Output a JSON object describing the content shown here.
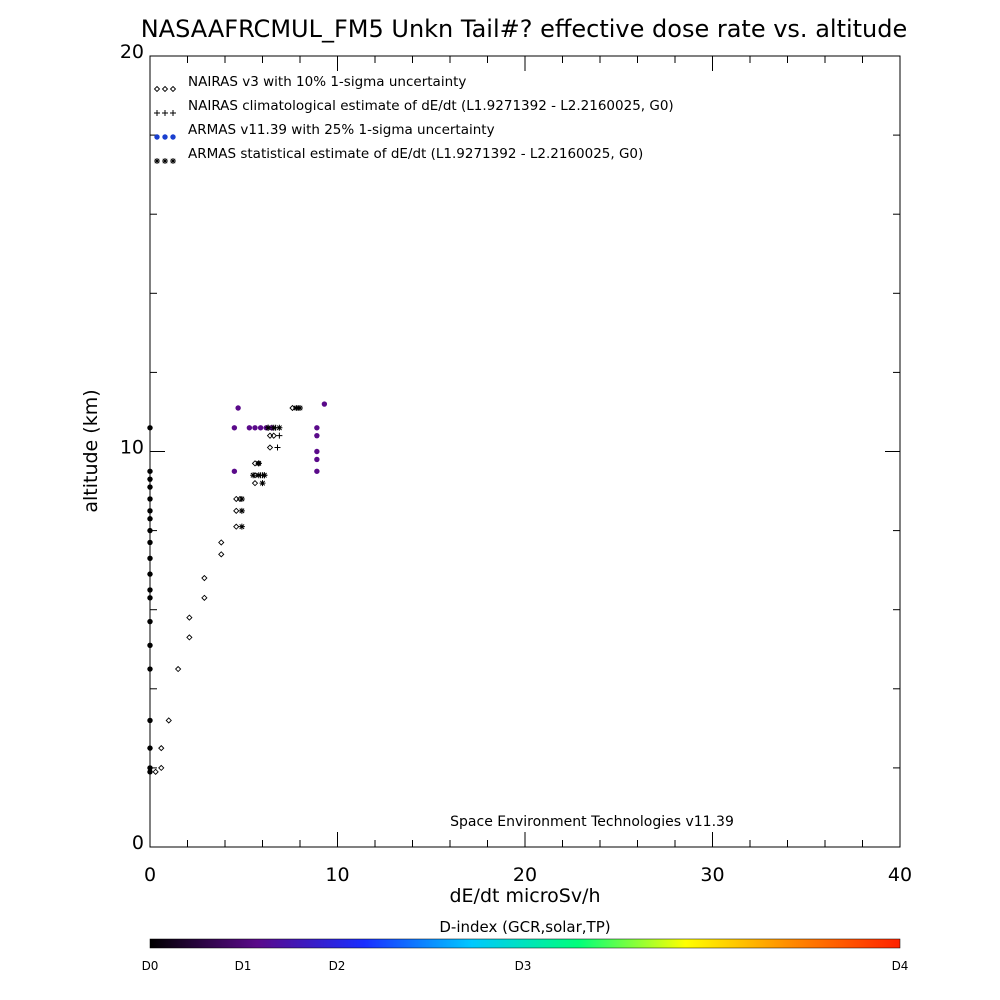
{
  "chart_data": {
    "type": "scatter",
    "title": "NASAAFRCMUL_FM5 Unkn Tail#? effective dose rate vs. altitude",
    "xlabel": "dE/dt microSv/h",
    "ylabel": "altitude (km)",
    "xlim": [
      0,
      40
    ],
    "ylim": [
      0,
      20
    ],
    "x_tick_labels": [
      "0",
      "10",
      "20",
      "30",
      "40"
    ],
    "y_tick_labels": [
      "0",
      "10",
      "20"
    ],
    "grid": false,
    "legend_placement": "top-left",
    "credit": "Space Environment Technologies v11.39",
    "series": [
      {
        "name": "NAIRAS v3 with 10% 1-sigma uncertainty",
        "marker": "diamond",
        "color": "#000000",
        "points": [
          [
            0.3,
            1.9
          ],
          [
            0.6,
            2.0
          ],
          [
            0.6,
            2.5
          ],
          [
            1.0,
            3.2
          ],
          [
            1.5,
            4.5
          ],
          [
            2.1,
            5.3
          ],
          [
            2.1,
            5.8
          ],
          [
            2.9,
            6.3
          ],
          [
            2.9,
            6.8
          ],
          [
            3.8,
            7.4
          ],
          [
            3.8,
            7.7
          ],
          [
            4.6,
            8.1
          ],
          [
            4.6,
            8.5
          ],
          [
            4.6,
            8.8
          ],
          [
            4.8,
            8.8
          ],
          [
            5.6,
            9.2
          ],
          [
            5.6,
            9.4
          ],
          [
            5.6,
            9.7
          ],
          [
            5.8,
            9.7
          ],
          [
            6.4,
            10.1
          ],
          [
            6.4,
            10.4
          ],
          [
            6.6,
            10.4
          ],
          [
            7.6,
            11.1
          ]
        ]
      },
      {
        "name": "NAIRAS climatological estimate of dE/dt (L1.9271392 - L2.2160025, G0)",
        "marker": "plus",
        "color": "#000000",
        "points": [
          [
            6.8,
            10.1
          ],
          [
            6.9,
            10.4
          ],
          [
            5.9,
            9.4
          ],
          [
            6.0,
            9.4
          ],
          [
            6.1,
            9.4
          ],
          [
            6.3,
            10.6
          ],
          [
            6.5,
            10.6
          ],
          [
            6.7,
            10.6
          ]
        ]
      },
      {
        "name": "ARMAS v11.39 with 25% 1-sigma uncertainty",
        "marker": "dot",
        "color": "#1a3fcf",
        "points": [
          [
            0.0,
            1.9
          ],
          [
            0.0,
            2.0
          ],
          [
            0.0,
            2.5
          ],
          [
            0.0,
            3.2
          ],
          [
            0.0,
            4.5
          ],
          [
            0.0,
            5.1
          ],
          [
            0.0,
            5.7
          ],
          [
            0.0,
            6.3
          ],
          [
            0.0,
            6.5
          ],
          [
            0.0,
            6.9
          ],
          [
            0.0,
            7.3
          ],
          [
            0.0,
            7.7
          ],
          [
            0.0,
            8.0
          ],
          [
            0.0,
            8.3
          ],
          [
            0.0,
            8.5
          ],
          [
            0.0,
            8.8
          ],
          [
            0.0,
            9.1
          ],
          [
            0.0,
            9.3
          ],
          [
            0.0,
            9.5
          ],
          [
            0.0,
            10.6
          ],
          [
            4.5,
            9.5
          ],
          [
            4.5,
            10.6
          ],
          [
            4.7,
            11.1
          ],
          [
            5.3,
            10.6
          ],
          [
            5.6,
            10.6
          ],
          [
            5.9,
            10.6
          ],
          [
            6.2,
            10.6
          ],
          [
            6.5,
            10.6
          ],
          [
            8.9,
            9.5
          ],
          [
            8.9,
            9.8
          ],
          [
            8.9,
            10.0
          ],
          [
            8.9,
            10.4
          ],
          [
            8.9,
            10.6
          ],
          [
            9.3,
            11.2
          ]
        ]
      },
      {
        "name": "ARMAS statistical estimate of dE/dt (L1.9271392 - L2.2160025, G0)",
        "marker": "asterisk",
        "color": "#000000",
        "points": [
          [
            4.9,
            8.1
          ],
          [
            4.9,
            8.5
          ],
          [
            4.9,
            8.8
          ],
          [
            6.0,
            9.2
          ],
          [
            5.8,
            9.7
          ],
          [
            5.5,
            9.4
          ],
          [
            5.8,
            9.4
          ],
          [
            6.1,
            9.4
          ],
          [
            6.3,
            10.6
          ],
          [
            6.6,
            10.6
          ],
          [
            6.9,
            10.6
          ],
          [
            7.8,
            11.1
          ],
          [
            7.9,
            11.1
          ],
          [
            8.0,
            11.1
          ]
        ]
      }
    ],
    "colorbar": {
      "title": "D-index (GCR,solar,TP)",
      "labels": [
        {
          "text": "D0",
          "value": 0
        },
        {
          "text": "D1",
          "value": 1
        },
        {
          "text": "D2",
          "value": 2
        },
        {
          "text": "D3",
          "value": 3
        },
        {
          "text": "D4",
          "value": 4
        }
      ],
      "stops": [
        "#000000",
        "#5a0a8a",
        "#1a2eff",
        "#00c8ff",
        "#00ff7a",
        "#ffff00",
        "#ff8800",
        "#ff2200"
      ]
    }
  }
}
